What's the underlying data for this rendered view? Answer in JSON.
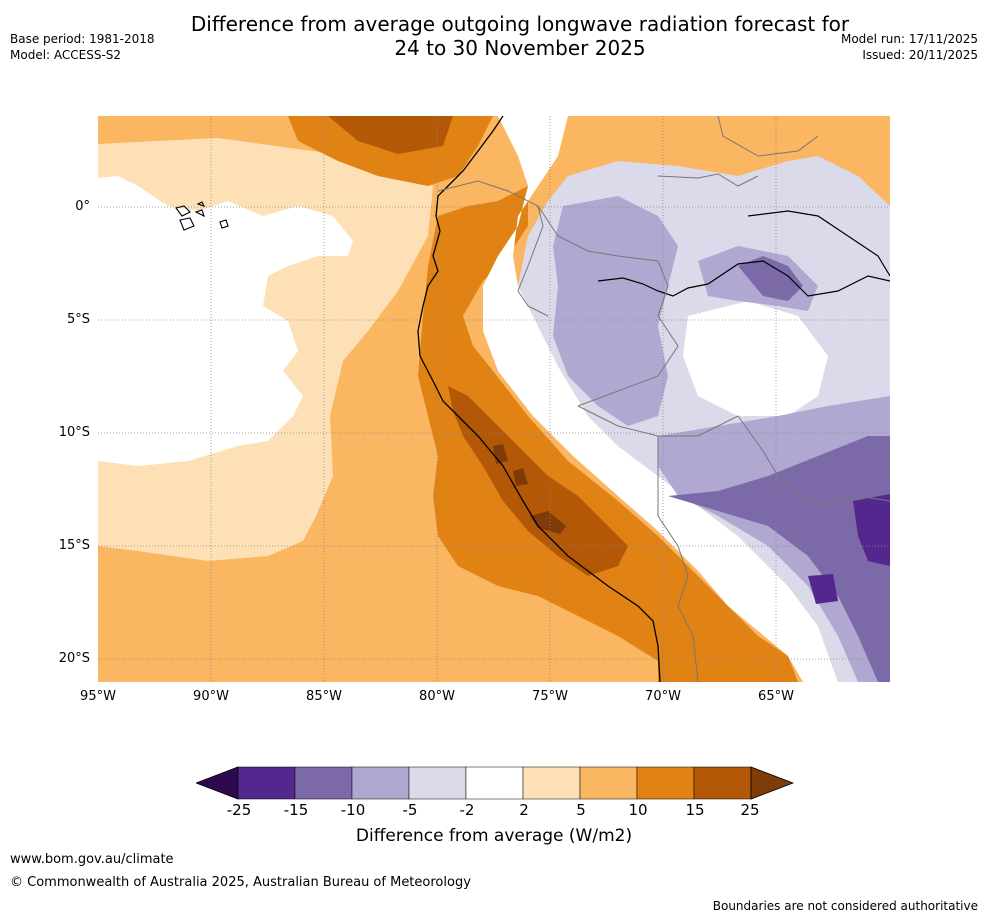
{
  "title": {
    "line1": "Difference from average outgoing longwave radiation forecast for",
    "line2": "24 to 30 November 2025"
  },
  "meta_left": {
    "base_period": "Base period: 1981-2018",
    "model": "Model: ACCESS-S2"
  },
  "meta_right": {
    "model_run": "Model run: 17/11/2025",
    "issued": "Issued: 20/11/2025"
  },
  "map": {
    "region": "Western South America / Eastern Pacific",
    "lat_labels": [
      "0°",
      "5°S",
      "10°S",
      "15°S",
      "20°S"
    ],
    "lon_labels": [
      "95°W",
      "90°W",
      "85°W",
      "80°W",
      "75°W",
      "70°W",
      "65°W"
    ]
  },
  "colorbar": {
    "tick_labels": [
      "-25",
      "-15",
      "-10",
      "-5",
      "-2",
      "2",
      "5",
      "10",
      "15",
      "25"
    ],
    "colors": [
      "#2d0a4e",
      "#54278f",
      "#7c6aa8",
      "#b0a8d0",
      "#dadaeb",
      "#ffffff",
      "#fee0b6",
      "#fbb661",
      "#e08214",
      "#b35806",
      "#7f3b08"
    ],
    "title": "Difference from average (W/m2)"
  },
  "footer": {
    "url": "www.bom.gov.au/climate",
    "copyright": "© Commonwealth of Australia 2025, Australian Bureau of Meteorology",
    "disclaimer": "Boundaries are not considered authoritative"
  }
}
